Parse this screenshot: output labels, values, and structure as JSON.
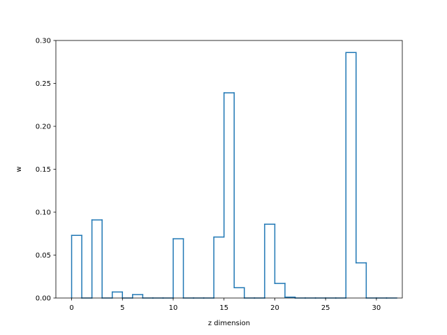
{
  "chart_data": {
    "type": "step",
    "xlabel": "z dimension",
    "ylabel": "w",
    "xlim": [
      -1.55,
      32.55
    ],
    "ylim": [
      0,
      0.3
    ],
    "x_ticks": [
      0,
      5,
      10,
      15,
      20,
      25,
      30
    ],
    "y_ticks": [
      0.0,
      0.05,
      0.1,
      0.15,
      0.2,
      0.25,
      0.3
    ],
    "x_tick_labels": [
      "0",
      "5",
      "10",
      "15",
      "20",
      "25",
      "30"
    ],
    "y_tick_labels": [
      "0.00",
      "0.05",
      "0.10",
      "0.15",
      "0.20",
      "0.25",
      "0.30"
    ],
    "x": [
      0,
      1,
      2,
      3,
      4,
      5,
      6,
      7,
      8,
      9,
      10,
      11,
      12,
      13,
      14,
      15,
      16,
      17,
      18,
      19,
      20,
      21,
      22,
      23,
      24,
      25,
      26,
      27,
      28,
      29,
      30,
      31
    ],
    "values": [
      0.073,
      0.0,
      0.091,
      0.0,
      0.007,
      0.0,
      0.004,
      0.0,
      0.0,
      0.0,
      0.069,
      0.0,
      0.0,
      0.0,
      0.071,
      0.239,
      0.012,
      0.0,
      0.0,
      0.086,
      0.017,
      0.001,
      0.0,
      0.0,
      0.0,
      0.0,
      0.0,
      0.286,
      0.041,
      0.0,
      0.0,
      0.0
    ],
    "color": "#1f77b4",
    "grid": false,
    "legend": false
  }
}
